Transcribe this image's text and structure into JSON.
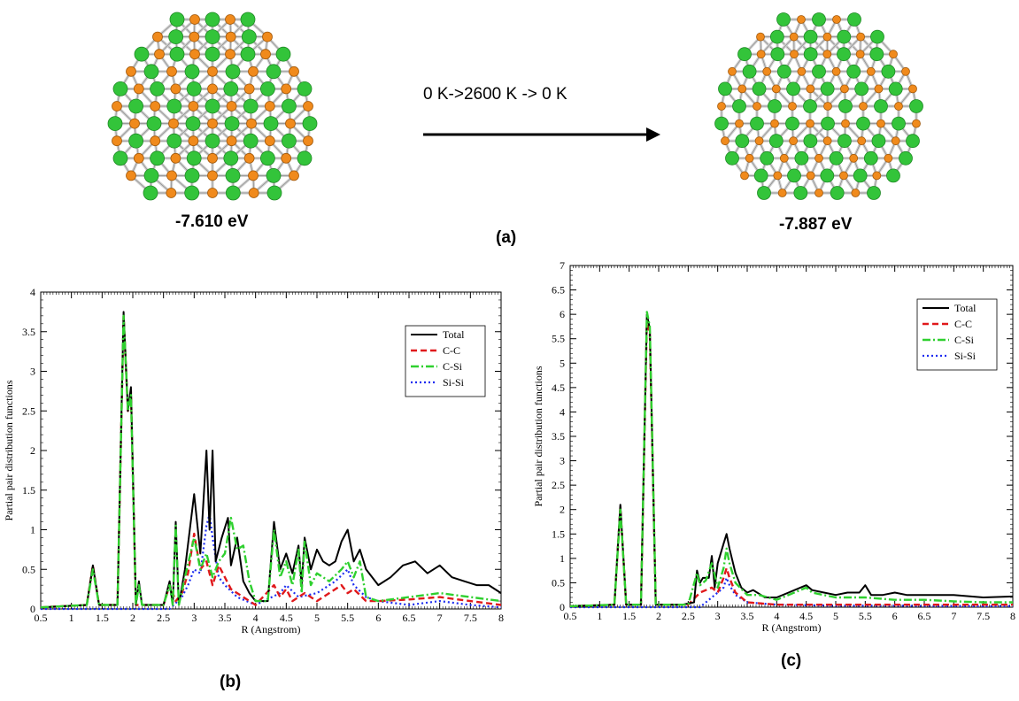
{
  "figure": {
    "top": {
      "left_energy": "-7.610 eV",
      "right_energy": "-7.887 eV",
      "process": "0 K->2600 K -> 0 K",
      "panel_label": "(a)"
    },
    "colors": {
      "carbon_atom": "#f08a1c",
      "silicon_atom": "#33c43a",
      "bond": "#cfcfcf",
      "total": "#000000",
      "cc": "#e0191b",
      "csi": "#2fd02f",
      "sisi": "#1c2cf0"
    }
  },
  "chart_data": [
    {
      "type": "line",
      "panel_label": "(b)",
      "xlabel": "R (Angstrom)",
      "ylabel": "Partial pair distribution functions",
      "xlim": [
        0.5,
        8
      ],
      "ylim": [
        0,
        4
      ],
      "xticks": [
        "0.5",
        "1",
        "1.5",
        "2",
        "2.5",
        "3",
        "3.5",
        "4",
        "4.5",
        "5",
        "5.5",
        "6",
        "6.5",
        "7",
        "7.5",
        "8"
      ],
      "yticks": [
        "0",
        "0.5",
        "1",
        "1.5",
        "2",
        "2.5",
        "3",
        "3.5",
        "4"
      ],
      "legend_position": "top-right",
      "series": [
        {
          "name": "Total",
          "key": "total",
          "x": [
            0.5,
            1.25,
            1.35,
            1.45,
            1.75,
            1.85,
            1.92,
            1.97,
            2.05,
            2.1,
            2.15,
            2.5,
            2.6,
            2.65,
            2.7,
            2.75,
            2.85,
            3.0,
            3.1,
            3.2,
            3.25,
            3.3,
            3.35,
            3.45,
            3.55,
            3.6,
            3.7,
            3.8,
            3.9,
            4.0,
            4.2,
            4.3,
            4.4,
            4.5,
            4.6,
            4.7,
            4.75,
            4.8,
            4.9,
            5.0,
            5.1,
            5.2,
            5.3,
            5.4,
            5.5,
            5.6,
            5.7,
            5.8,
            6.0,
            6.2,
            6.4,
            6.6,
            6.8,
            7.0,
            7.2,
            7.4,
            7.6,
            7.8,
            8.0
          ],
          "y": [
            0.02,
            0.05,
            0.55,
            0.05,
            0.05,
            3.75,
            2.5,
            2.8,
            0.05,
            0.35,
            0.05,
            0.05,
            0.35,
            0.05,
            1.1,
            0.05,
            0.5,
            1.45,
            0.7,
            2.0,
            1.0,
            2.0,
            0.6,
            0.9,
            1.15,
            0.55,
            0.9,
            0.35,
            0.2,
            0.1,
            0.1,
            1.1,
            0.5,
            0.7,
            0.45,
            0.8,
            0.3,
            0.9,
            0.5,
            0.75,
            0.6,
            0.55,
            0.6,
            0.85,
            1.0,
            0.6,
            0.75,
            0.5,
            0.3,
            0.4,
            0.55,
            0.6,
            0.45,
            0.55,
            0.4,
            0.35,
            0.3,
            0.3,
            0.2
          ]
        },
        {
          "name": "C-C",
          "key": "cc",
          "x": [
            0.5,
            1.25,
            1.35,
            1.45,
            1.75,
            1.85,
            1.92,
            1.97,
            2.05,
            2.5,
            2.6,
            2.7,
            2.8,
            2.9,
            3.0,
            3.1,
            3.2,
            3.3,
            3.4,
            3.5,
            3.6,
            3.8,
            4.0,
            4.3,
            4.4,
            4.5,
            4.6,
            4.8,
            5.0,
            5.2,
            5.4,
            5.5,
            5.6,
            5.8,
            6.0,
            6.5,
            7.0,
            7.5,
            8.0
          ],
          "y": [
            0.02,
            0.05,
            0.55,
            0.05,
            0.05,
            3.7,
            2.5,
            2.75,
            0.05,
            0.05,
            0.3,
            0.1,
            0.2,
            0.45,
            0.95,
            0.5,
            0.6,
            0.3,
            0.55,
            0.4,
            0.25,
            0.15,
            0.05,
            0.3,
            0.15,
            0.25,
            0.1,
            0.2,
            0.1,
            0.2,
            0.3,
            0.2,
            0.25,
            0.1,
            0.1,
            0.12,
            0.15,
            0.1,
            0.05
          ]
        },
        {
          "name": "C-Si",
          "key": "csi",
          "x": [
            0.5,
            1.25,
            1.35,
            1.45,
            1.75,
            1.85,
            1.92,
            1.97,
            2.05,
            2.1,
            2.15,
            2.5,
            2.6,
            2.65,
            2.7,
            2.75,
            2.85,
            3.0,
            3.1,
            3.2,
            3.3,
            3.4,
            3.5,
            3.6,
            3.7,
            3.8,
            3.9,
            4.0,
            4.2,
            4.3,
            4.4,
            4.5,
            4.6,
            4.7,
            4.75,
            4.8,
            4.9,
            5.0,
            5.2,
            5.4,
            5.5,
            5.6,
            5.7,
            5.8,
            6.0,
            6.5,
            7.0,
            7.5,
            8.0
          ],
          "y": [
            0.02,
            0.05,
            0.5,
            0.05,
            0.05,
            3.7,
            2.5,
            2.7,
            0.05,
            0.3,
            0.05,
            0.05,
            0.3,
            0.05,
            1.05,
            0.05,
            0.4,
            0.9,
            0.5,
            0.7,
            0.4,
            0.6,
            0.7,
            1.15,
            0.75,
            0.8,
            0.35,
            0.1,
            0.1,
            1.0,
            0.4,
            0.6,
            0.3,
            0.75,
            0.2,
            0.85,
            0.3,
            0.45,
            0.35,
            0.5,
            0.6,
            0.4,
            0.6,
            0.15,
            0.1,
            0.15,
            0.2,
            0.15,
            0.1
          ]
        },
        {
          "name": "Si-Si",
          "key": "sisi",
          "x": [
            0.5,
            2.6,
            2.8,
            2.9,
            3.0,
            3.1,
            3.2,
            3.25,
            3.3,
            3.4,
            3.5,
            3.7,
            4.0,
            4.4,
            4.5,
            4.7,
            5.0,
            5.3,
            5.5,
            5.6,
            5.8,
            6.0,
            6.5,
            7.0,
            7.5,
            8.0
          ],
          "y": [
            0.0,
            0.0,
            0.15,
            0.3,
            0.5,
            0.45,
            1.05,
            1.2,
            0.9,
            0.4,
            0.3,
            0.15,
            0.05,
            0.2,
            0.3,
            0.15,
            0.2,
            0.35,
            0.5,
            0.3,
            0.15,
            0.1,
            0.05,
            0.1,
            0.05,
            0.02
          ]
        }
      ]
    },
    {
      "type": "line",
      "panel_label": "(c)",
      "xlabel": "R (Angstrom)",
      "ylabel": "Partial pair distribution functions",
      "xlim": [
        0.5,
        8
      ],
      "ylim": [
        0,
        7
      ],
      "xticks": [
        "0.5",
        "1",
        "1.5",
        "2",
        "2.5",
        "3",
        "3.5",
        "4",
        "4.5",
        "5",
        "5.5",
        "6",
        "6.5",
        "7",
        "7.5",
        "8"
      ],
      "yticks": [
        "0",
        "0.5",
        "1",
        "1.5",
        "2",
        "2.5",
        "3",
        "3.5",
        "4",
        "4.5",
        "5",
        "5.5",
        "6",
        "6.5",
        "7"
      ],
      "legend_position": "top-right",
      "series": [
        {
          "name": "Total",
          "key": "total",
          "x": [
            0.5,
            1.25,
            1.35,
            1.45,
            1.7,
            1.8,
            1.85,
            1.95,
            2.4,
            2.6,
            2.65,
            2.7,
            2.75,
            2.85,
            2.9,
            2.95,
            3.0,
            3.1,
            3.15,
            3.2,
            3.3,
            3.4,
            3.5,
            3.6,
            3.8,
            4.0,
            4.2,
            4.4,
            4.5,
            4.6,
            4.8,
            5.0,
            5.2,
            5.4,
            5.5,
            5.6,
            5.8,
            6.0,
            6.2,
            6.5,
            7.0,
            7.5,
            8.0
          ],
          "y": [
            0.02,
            0.05,
            2.1,
            0.05,
            0.05,
            6.0,
            5.7,
            0.05,
            0.05,
            0.1,
            0.75,
            0.5,
            0.6,
            0.6,
            1.05,
            0.4,
            0.9,
            1.3,
            1.5,
            1.2,
            0.7,
            0.4,
            0.3,
            0.35,
            0.2,
            0.2,
            0.3,
            0.4,
            0.45,
            0.35,
            0.3,
            0.25,
            0.3,
            0.3,
            0.45,
            0.25,
            0.25,
            0.3,
            0.25,
            0.25,
            0.25,
            0.2,
            0.22
          ]
        },
        {
          "name": "C-C",
          "key": "cc",
          "x": [
            0.5,
            1.25,
            1.35,
            1.45,
            1.7,
            1.8,
            1.85,
            1.95,
            2.5,
            2.7,
            2.9,
            3.0,
            3.1,
            3.15,
            3.2,
            3.3,
            3.5,
            4.0,
            5.0,
            6.0,
            7.0,
            8.0
          ],
          "y": [
            0.02,
            0.05,
            2.05,
            0.05,
            0.05,
            5.9,
            5.6,
            0.05,
            0.05,
            0.3,
            0.4,
            0.3,
            0.6,
            0.8,
            0.6,
            0.3,
            0.1,
            0.05,
            0.05,
            0.05,
            0.05,
            0.05
          ]
        },
        {
          "name": "C-Si",
          "key": "csi",
          "x": [
            0.5,
            1.25,
            1.35,
            1.45,
            1.7,
            1.8,
            1.85,
            1.95,
            2.5,
            2.65,
            2.7,
            2.8,
            2.9,
            3.0,
            3.1,
            3.15,
            3.2,
            3.3,
            3.5,
            3.7,
            4.0,
            4.4,
            4.5,
            4.6,
            5.0,
            5.5,
            6.0,
            6.5,
            7.0,
            7.5,
            8.0
          ],
          "y": [
            0.02,
            0.05,
            2.0,
            0.05,
            0.05,
            6.05,
            5.75,
            0.05,
            0.05,
            0.7,
            0.45,
            0.55,
            0.9,
            0.4,
            0.8,
            1.2,
            0.9,
            0.5,
            0.25,
            0.25,
            0.15,
            0.35,
            0.4,
            0.3,
            0.2,
            0.2,
            0.15,
            0.15,
            0.12,
            0.1,
            0.1
          ]
        },
        {
          "name": "Si-Si",
          "key": "sisi",
          "x": [
            0.5,
            2.7,
            2.9,
            3.1,
            3.15,
            3.2,
            3.3,
            3.5,
            4.0,
            5.0,
            6.0,
            7.0,
            8.0
          ],
          "y": [
            0.0,
            0.0,
            0.2,
            0.4,
            0.6,
            0.45,
            0.25,
            0.1,
            0.05,
            0.03,
            0.03,
            0.02,
            0.02
          ]
        }
      ]
    }
  ]
}
